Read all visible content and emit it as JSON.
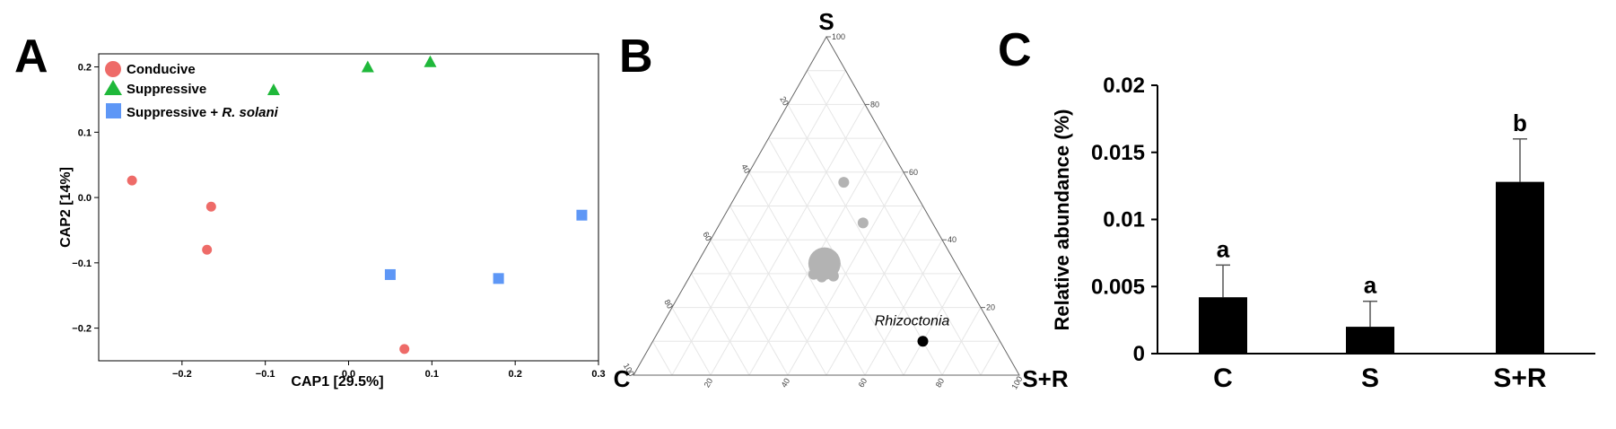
{
  "panels": {
    "a": "A",
    "b": "B",
    "c": "C"
  },
  "colors": {
    "conducive": "#EE6B68",
    "suppressive": "#1FB83A",
    "suppressive_rs": "#5E97F6",
    "grey": "#B3B3B3",
    "rhizo": "#000000",
    "bar": "#000000"
  },
  "chart_data": [
    {
      "type": "scatter",
      "title": "",
      "xlabel": "CAP1   [29.5%]",
      "ylabel": "CAP2   [14%]",
      "xlim": [
        -0.3,
        0.3
      ],
      "ylim": [
        -0.25,
        0.22
      ],
      "x_ticks": [
        -0.2,
        -0.1,
        0.0,
        0.1,
        0.2,
        0.3
      ],
      "x_tick_labels": [
        "−0.2",
        "−0.1",
        "0.0",
        "0.1",
        "0.2",
        "0.3"
      ],
      "y_ticks": [
        -0.2,
        -0.1,
        0.0,
        0.1,
        0.2
      ],
      "y_tick_labels": [
        "−0.2",
        "−0.1",
        "0.0",
        "0.1",
        "0.2"
      ],
      "legend_placement": "top-left",
      "series": [
        {
          "name": "Conducive",
          "marker": "circle",
          "points": [
            [
              -0.26,
              0.026
            ],
            [
              -0.165,
              -0.014
            ],
            [
              -0.17,
              -0.08
            ],
            [
              0.067,
              -0.232
            ]
          ]
        },
        {
          "name": "Suppressive",
          "marker": "triangle",
          "points": [
            [
              -0.09,
              0.165
            ],
            [
              0.023,
              0.2
            ],
            [
              0.098,
              0.208
            ]
          ]
        },
        {
          "name": "Suppressive + R. solani",
          "legend_prefix": "Suppressive + ",
          "legend_italic": "R. solani",
          "marker": "square",
          "points": [
            [
              0.05,
              -0.118
            ],
            [
              0.18,
              -0.124
            ],
            [
              0.28,
              -0.027
            ]
          ]
        }
      ]
    },
    {
      "type": "ternary",
      "vertices": {
        "top": "S",
        "left": "C",
        "right": "S+R"
      },
      "ticks": [
        {
          "label": "100"
        },
        {
          "label": "80"
        },
        {
          "label": "60"
        },
        {
          "label": "40"
        },
        {
          "label": "20"
        }
      ],
      "left_ticks": [
        "20",
        "40",
        "60",
        "80",
        "100"
      ],
      "bottom_ticks": [
        "20",
        "40",
        "60",
        "80",
        "100"
      ],
      "points": [
        {
          "S": 57,
          "C": 17,
          "SR": 26,
          "size": "small"
        },
        {
          "S": 45,
          "C": 18,
          "SR": 37,
          "size": "small"
        },
        {
          "S": 33,
          "C": 34,
          "SR": 33,
          "size": "large"
        }
      ],
      "annotation": {
        "label": "Rhizoctonia",
        "S": 10,
        "C": 20,
        "SR": 70
      }
    },
    {
      "type": "bar",
      "categories": [
        "C",
        "S",
        "S+R"
      ],
      "values": [
        0.0042,
        0.002,
        0.0128
      ],
      "errors": [
        0.0024,
        0.0019,
        0.0032
      ],
      "letters": [
        "a",
        "a",
        "b"
      ],
      "ylabel": "Relative abundance (%)",
      "ylim": [
        0,
        0.02
      ],
      "y_ticks": [
        0,
        0.005,
        0.01,
        0.015,
        0.02
      ],
      "y_tick_labels": [
        "0",
        "0.005",
        "0.01",
        "0.015",
        "0.02"
      ]
    }
  ]
}
